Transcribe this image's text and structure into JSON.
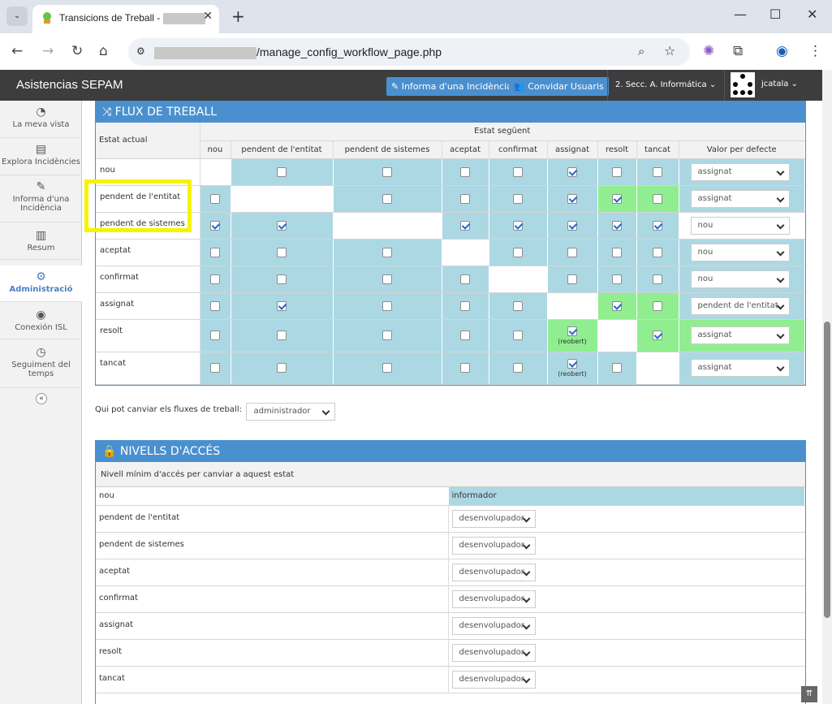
{
  "browser": {
    "tab_title": "Transicions de Treball -",
    "url_path": "/manage_config_workflow_page.php",
    "close": "✕",
    "new_tab": "+"
  },
  "app": {
    "brand": "Asistencias SEPAM",
    "report_btn": "Informa d'una Incidència",
    "invite_btn": "Convidar Usuaris",
    "project": "2. Secc. A. Informática",
    "user": "jcatala"
  },
  "sidebar": [
    {
      "label": "La meva vista",
      "icon": "dashboard-icon"
    },
    {
      "label": "Explora Incidències",
      "icon": "list-icon"
    },
    {
      "label": "Informa d'una Incidència",
      "icon": "edit-icon"
    },
    {
      "label": "Resum",
      "icon": "bar-chart-icon"
    },
    {
      "label": "Administració",
      "icon": "gears-icon"
    },
    {
      "label": "Conexión ISL",
      "icon": "eye-icon"
    },
    {
      "label": "Seguiment del temps",
      "icon": "clock-icon"
    }
  ],
  "workflow": {
    "title": "FLUX DE TREBALL",
    "current_state": "Estat actual",
    "next_state": "Estat següent",
    "default_value": "Valor per defecte",
    "columns": [
      "nou",
      "pendent de l'entitat",
      "pendent de sistemes",
      "aceptat",
      "confirmat",
      "assignat",
      "resolt",
      "tancat"
    ],
    "reopened": "(reobert)",
    "rows": [
      {
        "state": "nou",
        "cells": [
          "W",
          "B0",
          "B0",
          "B0",
          "B0",
          "B1",
          "B0",
          "B0"
        ],
        "default": "assignat",
        "dbg": "bl"
      },
      {
        "state": "pendent de l'entitat",
        "cells": [
          "B0",
          "W",
          "B0",
          "B0",
          "B0",
          "B1",
          "G1",
          "G0"
        ],
        "default": "assignat",
        "dbg": "bl"
      },
      {
        "state": "pendent de sistemes",
        "cells": [
          "B1",
          "B1",
          "W",
          "B1",
          "B1",
          "B1",
          "B1",
          "B1"
        ],
        "default": "nou",
        "dbg": "wh"
      },
      {
        "state": "aceptat",
        "cells": [
          "B0",
          "B0",
          "B0",
          "W",
          "B0",
          "B0",
          "B0",
          "B0"
        ],
        "default": "nou",
        "dbg": "bl"
      },
      {
        "state": "confirmat",
        "cells": [
          "B0",
          "B0",
          "B0",
          "B0",
          "W",
          "B0",
          "B0",
          "B0"
        ],
        "default": "nou",
        "dbg": "bl"
      },
      {
        "state": "assignat",
        "cells": [
          "B0",
          "B1",
          "B0",
          "B0",
          "B0",
          "W",
          "G1",
          "G0"
        ],
        "default": "pendent de l'entitat",
        "dbg": "bl"
      },
      {
        "state": "resolt",
        "cells": [
          "B0",
          "B0",
          "B0",
          "B0",
          "B0",
          "G1R",
          "W",
          "G1"
        ],
        "default": "assignat",
        "dbg": "gr"
      },
      {
        "state": "tancat",
        "cells": [
          "B0",
          "B0",
          "B0",
          "B0",
          "B0",
          "B1R",
          "B0",
          "W"
        ],
        "default": "assignat",
        "dbg": "bl"
      }
    ],
    "who_can_change_label": "Qui pot canviar els fluxes de treball:",
    "who_can_change_value": "administrador"
  },
  "access": {
    "title": "NIVELLS D'ACCÉS",
    "subtitle": "Nivell mínim d'accés per canviar a aquest estat",
    "first_state": "nou",
    "first_value": "informador",
    "rows": [
      {
        "state": "pendent de l'entitat",
        "value": "desenvolupador"
      },
      {
        "state": "pendent de sistemes",
        "value": "desenvolupador"
      },
      {
        "state": "aceptat",
        "value": "desenvolupador"
      },
      {
        "state": "confirmat",
        "value": "desenvolupador"
      },
      {
        "state": "assignat",
        "value": "desenvolupador"
      },
      {
        "state": "resolt",
        "value": "desenvolupador"
      },
      {
        "state": "tancat",
        "value": "desenvolupador"
      }
    ]
  },
  "colors": {
    "accent": "#4a90cf",
    "cell_blue": "#acd8e4",
    "cell_green": "#90ee90",
    "highlight": "#f7f400"
  }
}
